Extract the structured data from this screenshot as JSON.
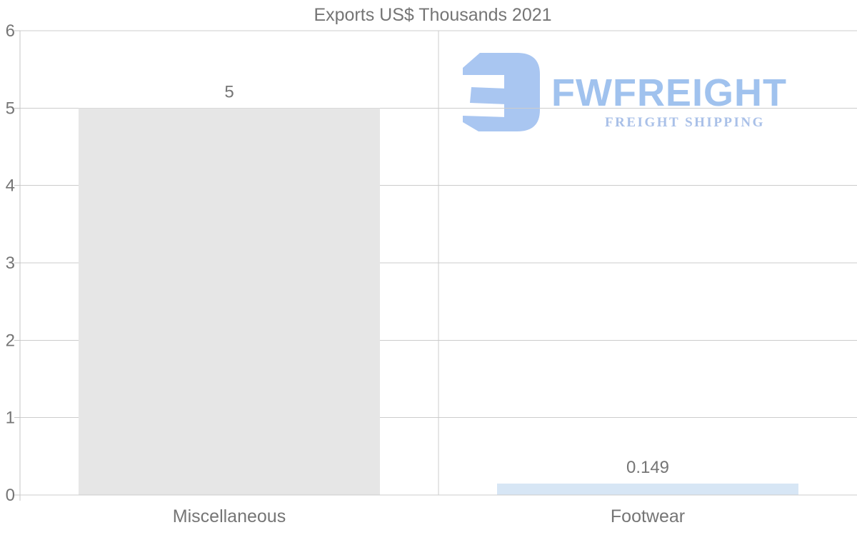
{
  "page": {
    "background_color": "#ffffff"
  },
  "chart_data": {
    "type": "bar",
    "title": "Exports US$ Thousands 2021",
    "categories": [
      "Miscellaneous",
      "Footwear"
    ],
    "values": [
      5,
      0.149
    ],
    "value_labels": [
      "5",
      "0.149"
    ],
    "bar_colors": [
      "#e6e6e6",
      "#d7e6f5"
    ],
    "xlabel": "",
    "ylabel": "",
    "ylim": [
      0,
      6
    ],
    "y_ticks": [
      0,
      1,
      2,
      3,
      4,
      5,
      6
    ],
    "grid": true,
    "legend": "none"
  },
  "watermark": {
    "brand": "FWFREIGHT",
    "tagline": "FREIGHT SHIPPING",
    "logo_icon": "fwfreight-logo-mark",
    "brand_color": "#a0c2ee",
    "tagline_color": "#a9c0e8",
    "mark_color": "#a9c6f1"
  },
  "styles": {
    "text_color": "#757575",
    "gridline_color": "#cccccc",
    "axis_line_color": "#c4c4c4"
  }
}
